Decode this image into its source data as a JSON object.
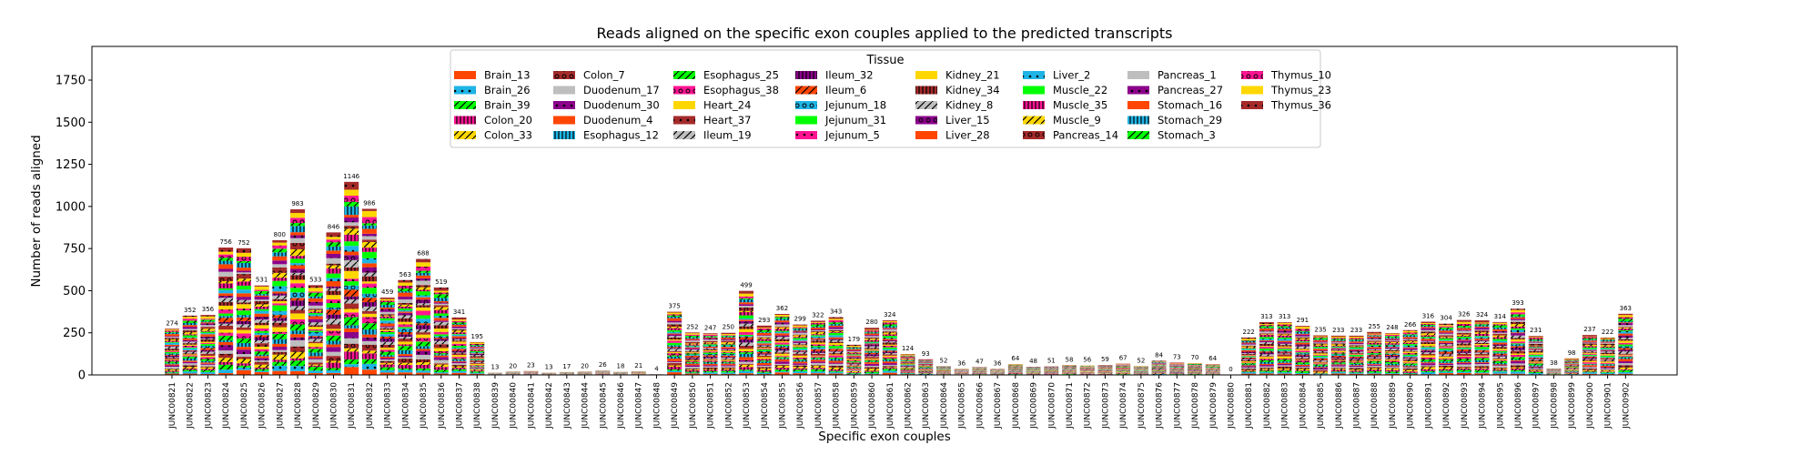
{
  "chart_data": {
    "type": "bar",
    "stacked": true,
    "title": "Reads aligned on the specific exon couples applied to the predicted transcripts",
    "xlabel": "Specific exon couples",
    "ylabel": "Number of reads aligned",
    "ylim": [
      0,
      1950
    ],
    "yticks": [
      0,
      250,
      500,
      750,
      1000,
      1250,
      1500,
      1750
    ],
    "grid": false,
    "legend": {
      "title": "Tissue",
      "placement": "top-center",
      "columns": 8
    },
    "tissues": [
      "Brain_13",
      "Brain_26",
      "Brain_39",
      "Colon_20",
      "Colon_33",
      "Colon_7",
      "Duodenum_17",
      "Duodenum_30",
      "Duodenum_4",
      "Esophagus_12",
      "Esophagus_25",
      "Esophagus_38",
      "Heart_24",
      "Heart_37",
      "Ileum_19",
      "Ileum_32",
      "Ileum_6",
      "Jejunum_18",
      "Jejunum_31",
      "Jejunum_5",
      "Kidney_21",
      "Kidney_34",
      "Kidney_8",
      "Liver_15",
      "Liver_28",
      "Liver_2",
      "Muscle_22",
      "Muscle_35",
      "Muscle_9",
      "Pancreas_14",
      "Pancreas_1",
      "Pancreas_27",
      "Stomach_16",
      "Stomach_29",
      "Stomach_3",
      "Thymus_10",
      "Thymus_23",
      "Thymus_36"
    ],
    "tissue_styles": [
      {
        "color": "#FF4500",
        "hatch": "none"
      },
      {
        "color": "#1EB4E6",
        "hatch": "dot"
      },
      {
        "color": "#00FF00",
        "hatch": "slash"
      },
      {
        "color": "#FF1493",
        "hatch": "vline"
      },
      {
        "color": "#FFD700",
        "hatch": "slash"
      },
      {
        "color": "#A52A2A",
        "hatch": "circle"
      },
      {
        "color": "#BEBEBE",
        "hatch": "none"
      },
      {
        "color": "#8B008B",
        "hatch": "dot"
      },
      {
        "color": "#FF4500",
        "hatch": "none"
      },
      {
        "color": "#1EB4E6",
        "hatch": "vline"
      },
      {
        "color": "#00FF00",
        "hatch": "slash"
      },
      {
        "color": "#FF1493",
        "hatch": "circle"
      },
      {
        "color": "#FFD700",
        "hatch": "none"
      },
      {
        "color": "#A52A2A",
        "hatch": "dot"
      },
      {
        "color": "#BEBEBE",
        "hatch": "slash"
      },
      {
        "color": "#8B008B",
        "hatch": "vline"
      },
      {
        "color": "#FF4500",
        "hatch": "slash"
      },
      {
        "color": "#1EB4E6",
        "hatch": "circle"
      },
      {
        "color": "#00FF00",
        "hatch": "none"
      },
      {
        "color": "#FF1493",
        "hatch": "dot"
      },
      {
        "color": "#FFD700",
        "hatch": "none"
      },
      {
        "color": "#A52A2A",
        "hatch": "vline"
      },
      {
        "color": "#BEBEBE",
        "hatch": "slash"
      },
      {
        "color": "#8B008B",
        "hatch": "circle"
      },
      {
        "color": "#FF4500",
        "hatch": "none"
      },
      {
        "color": "#1EB4E6",
        "hatch": "dot"
      },
      {
        "color": "#00FF00",
        "hatch": "none"
      },
      {
        "color": "#FF1493",
        "hatch": "vline"
      },
      {
        "color": "#FFD700",
        "hatch": "slash"
      },
      {
        "color": "#A52A2A",
        "hatch": "circle"
      },
      {
        "color": "#BEBEBE",
        "hatch": "none"
      },
      {
        "color": "#8B008B",
        "hatch": "dot"
      },
      {
        "color": "#FF4500",
        "hatch": "none"
      },
      {
        "color": "#1EB4E6",
        "hatch": "vline"
      },
      {
        "color": "#00FF00",
        "hatch": "slash"
      },
      {
        "color": "#FF1493",
        "hatch": "circle"
      },
      {
        "color": "#FFD700",
        "hatch": "none"
      },
      {
        "color": "#A52A2A",
        "hatch": "dot"
      }
    ],
    "categories": [
      "JUNC00821",
      "JUNC00822",
      "JUNC00823",
      "JUNC00824",
      "JUNC00825",
      "JUNC00826",
      "JUNC00827",
      "JUNC00828",
      "JUNC00829",
      "JUNC00830",
      "JUNC00831",
      "JUNC00832",
      "JUNC00833",
      "JUNC00834",
      "JUNC00835",
      "JUNC00836",
      "JUNC00837",
      "JUNC00838",
      "JUNC00839",
      "JUNC00840",
      "JUNC00841",
      "JUNC00842",
      "JUNC00843",
      "JUNC00844",
      "JUNC00845",
      "JUNC00846",
      "JUNC00847",
      "JUNC00848",
      "JUNC00849",
      "JUNC00850",
      "JUNC00851",
      "JUNC00852",
      "JUNC00853",
      "JUNC00854",
      "JUNC00855",
      "JUNC00856",
      "JUNC00857",
      "JUNC00858",
      "JUNC00859",
      "JUNC00860",
      "JUNC00861",
      "JUNC00862",
      "JUNC00863",
      "JUNC00864",
      "JUNC00865",
      "JUNC00866",
      "JUNC00867",
      "JUNC00868",
      "JUNC00869",
      "JUNC00870",
      "JUNC00871",
      "JUNC00872",
      "JUNC00873",
      "JUNC00874",
      "JUNC00875",
      "JUNC00876",
      "JUNC00877",
      "JUNC00878",
      "JUNC00879",
      "JUNC00880",
      "JUNC00881",
      "JUNC00882",
      "JUNC00883",
      "JUNC00884",
      "JUNC00885",
      "JUNC00886",
      "JUNC00887",
      "JUNC00888",
      "JUNC00889",
      "JUNC00890",
      "JUNC00891",
      "JUNC00892",
      "JUNC00893",
      "JUNC00894",
      "JUNC00895",
      "JUNC00896",
      "JUNC00897",
      "JUNC00898",
      "JUNC00899",
      "JUNC00900",
      "JUNC00901",
      "JUNC00902"
    ],
    "totals": [
      274,
      352,
      356,
      756,
      752,
      531,
      800,
      983,
      533,
      846,
      1146,
      986,
      459,
      563,
      688,
      519,
      341,
      195,
      13,
      20,
      23,
      13,
      17,
      20,
      26,
      18,
      21,
      4,
      375,
      252,
      247,
      250,
      499,
      293,
      362,
      299,
      322,
      343,
      179,
      280,
      324,
      124,
      93,
      52,
      36,
      47,
      36,
      64,
      48,
      51,
      58,
      56,
      59,
      67,
      52,
      84,
      73,
      70,
      64,
      0,
      222,
      313,
      313,
      291,
      235,
      233,
      233,
      255,
      248,
      266,
      316,
      304,
      326,
      324,
      314,
      393,
      231,
      38,
      98,
      237,
      222,
      363
    ]
  }
}
